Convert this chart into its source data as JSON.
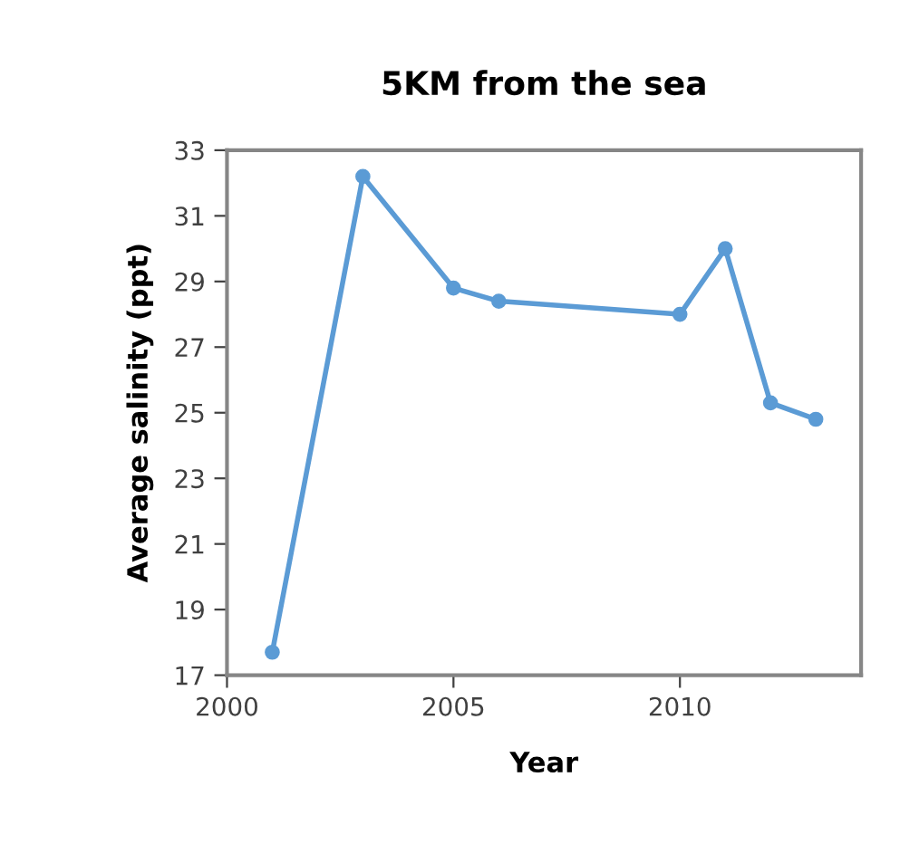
{
  "chart_data": {
    "type": "line",
    "title": "5KM from the sea",
    "xlabel": "Year",
    "ylabel": "Average salinity (ppt)",
    "x": [
      2001,
      2003,
      2005,
      2006,
      2010,
      2011,
      2012,
      2013
    ],
    "series": [
      {
        "color": "#5b9bd5",
        "values": [
          17.7,
          32.2,
          28.8,
          28.4,
          28.0,
          30.0,
          25.3,
          24.8
        ]
      }
    ],
    "xlim": [
      2000,
      2014
    ],
    "xticks": [
      2000,
      2005,
      2010
    ],
    "ylim": [
      17,
      33
    ],
    "yticks": [
      17,
      19,
      21,
      23,
      25,
      27,
      29,
      31,
      33
    ],
    "grid": false,
    "legend": false,
    "marker": "circle",
    "line_style": "solid"
  }
}
